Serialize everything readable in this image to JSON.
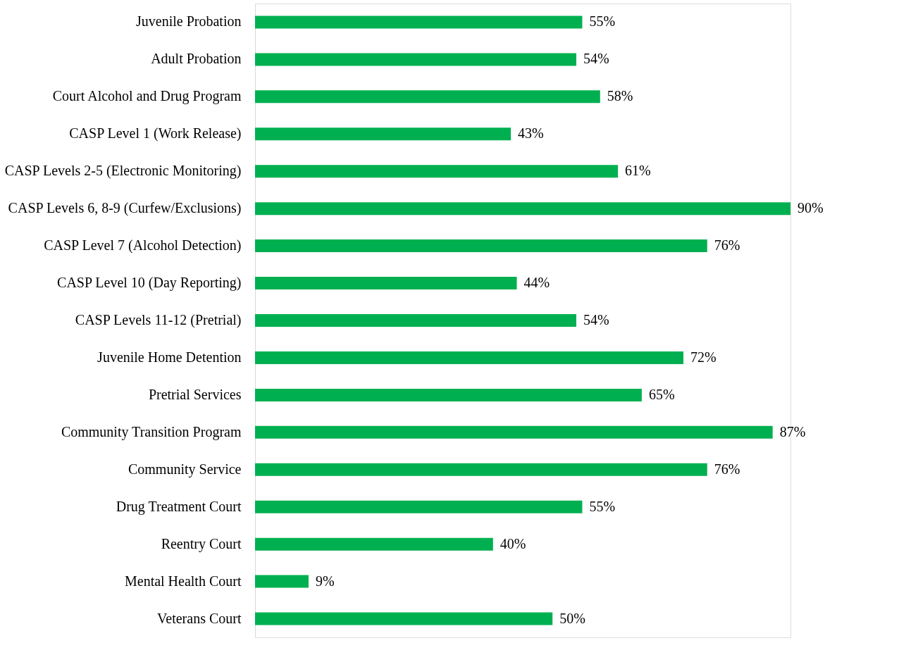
{
  "chart_data": {
    "type": "bar",
    "orientation": "horizontal",
    "categories": [
      "Juvenile Probation",
      "Adult Probation",
      "Court Alcohol and Drug Program",
      "CASP Level 1 (Work Release)",
      "CASP Levels 2-5 (Electronic Monitoring)",
      "CASP Levels 6, 8-9 (Curfew/Exclusions)",
      "CASP Level 7 (Alcohol Detection)",
      "CASP Level 10 (Day Reporting)",
      "CASP Levels 11-12 (Pretrial)",
      "Juvenile Home Detention",
      "Pretrial Services",
      "Community Transition Program",
      "Community Service",
      "Drug Treatment Court",
      "Reentry Court",
      "Mental Health Court",
      "Veterans Court"
    ],
    "values": [
      55,
      54,
      58,
      43,
      61,
      90,
      76,
      44,
      54,
      72,
      65,
      87,
      76,
      55,
      40,
      9,
      50
    ],
    "value_labels": [
      "55%",
      "54%",
      "58%",
      "43%",
      "61%",
      "90%",
      "76%",
      "44%",
      "54%",
      "72%",
      "65%",
      "87%",
      "76%",
      "55%",
      "40%",
      "9%",
      "50%"
    ],
    "color": "#00b050"
  }
}
